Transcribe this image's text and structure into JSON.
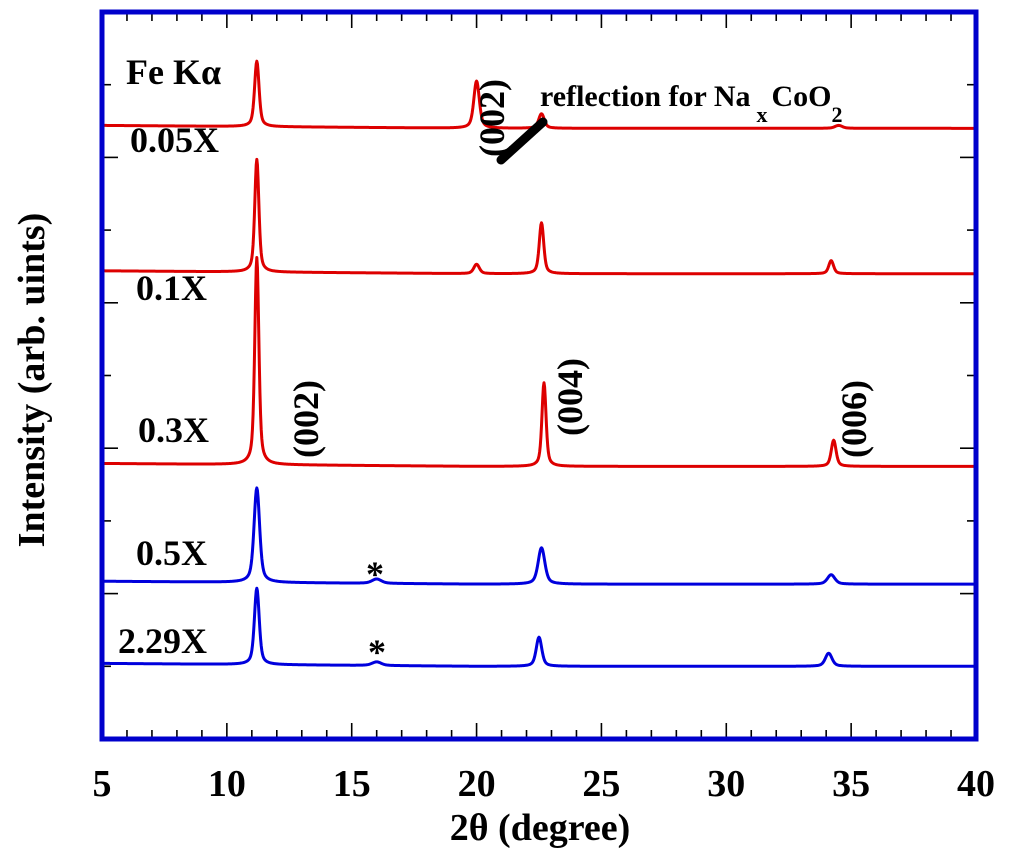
{
  "chart_data": {
    "type": "line",
    "title": "",
    "xlabel": "2θ (degree)",
    "ylabel": "Intensity (arb. uints)",
    "xlim": [
      5,
      40
    ],
    "x_ticks": [
      5,
      10,
      15,
      20,
      25,
      30,
      35,
      40
    ],
    "y_ticks_shown": false,
    "grid": false,
    "colors": {
      "red": "#dd0000",
      "blue": "#0000dd",
      "frame": "#0000cc"
    },
    "series": [
      {
        "name": "0.05X",
        "color": "#dd0000",
        "baseline": 0.84,
        "peaks": [
          {
            "x": 11.2,
            "height": 0.09,
            "width": 0.12
          },
          {
            "x": 20.0,
            "height": 0.065,
            "width": 0.15
          },
          {
            "x": 22.6,
            "height": 0.02,
            "width": 0.15
          },
          {
            "x": 34.5,
            "height": 0.004,
            "width": 0.2
          }
        ]
      },
      {
        "name": "0.1X",
        "color": "#dd0000",
        "baseline": 0.64,
        "peaks": [
          {
            "x": 11.2,
            "height": 0.155,
            "width": 0.11
          },
          {
            "x": 20.0,
            "height": 0.013,
            "width": 0.15
          },
          {
            "x": 22.6,
            "height": 0.07,
            "width": 0.12
          },
          {
            "x": 34.2,
            "height": 0.018,
            "width": 0.13
          }
        ]
      },
      {
        "name": "0.3X",
        "color": "#dd0000",
        "baseline": 0.375,
        "peaks": [
          {
            "x": 11.2,
            "height": 0.285,
            "width": 0.11
          },
          {
            "x": 22.7,
            "height": 0.115,
            "width": 0.11
          },
          {
            "x": 34.3,
            "height": 0.036,
            "width": 0.13
          }
        ]
      },
      {
        "name": "0.5X",
        "color": "#0000dd",
        "baseline": 0.213,
        "peaks": [
          {
            "x": 11.2,
            "height": 0.13,
            "width": 0.15
          },
          {
            "x": 16.0,
            "height": 0.006,
            "width": 0.25
          },
          {
            "x": 22.6,
            "height": 0.05,
            "width": 0.18
          },
          {
            "x": 34.2,
            "height": 0.013,
            "width": 0.2
          }
        ]
      },
      {
        "name": "2.29X",
        "color": "#0000dd",
        "baseline": 0.1,
        "peaks": [
          {
            "x": 11.2,
            "height": 0.105,
            "width": 0.13
          },
          {
            "x": 16.0,
            "height": 0.005,
            "width": 0.25
          },
          {
            "x": 22.5,
            "height": 0.04,
            "width": 0.15
          },
          {
            "x": 34.1,
            "height": 0.018,
            "width": 0.18
          }
        ]
      }
    ],
    "annotations": {
      "radiation": "Fe Kα",
      "reflection_text": "reflection for Na",
      "reflection_sub_x": "x",
      "reflection_coo": "CoO",
      "reflection_sub_2": "2",
      "peak_002_top": "(002)",
      "peak_002": "(002)",
      "peak_004": "(004)",
      "peak_006": "(006)",
      "star": "*"
    }
  }
}
